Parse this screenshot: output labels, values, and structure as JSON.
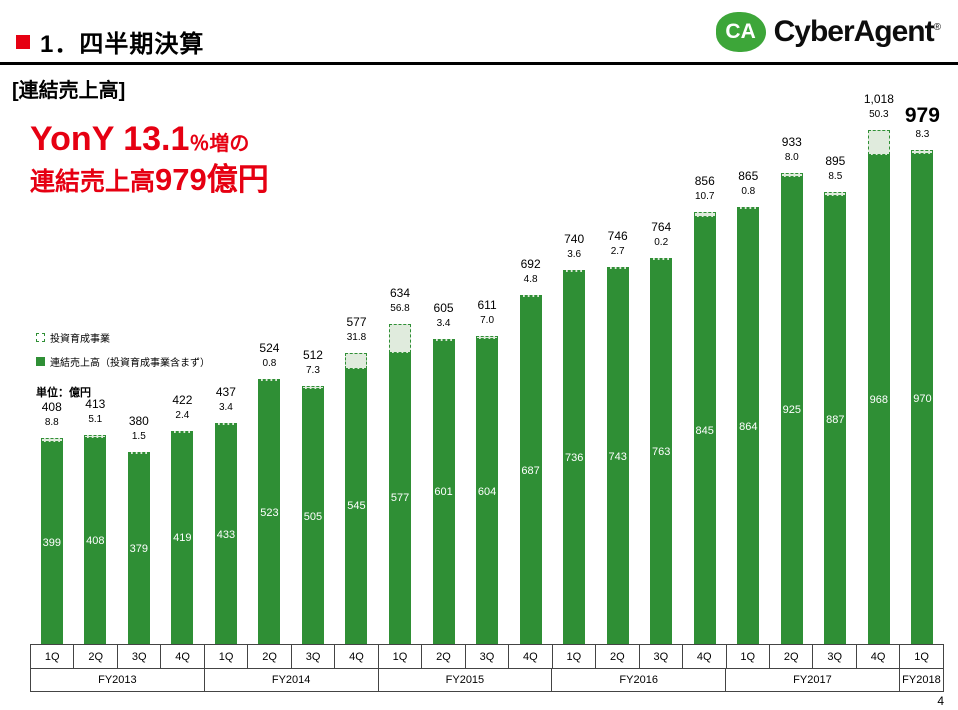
{
  "header": {
    "title": "1．四半期決算"
  },
  "logo": {
    "mark": "CA",
    "text": "CyberAgent",
    "reg": "®"
  },
  "section_label": "[連結売上高]",
  "highlight": {
    "yony": "YonY 13.1",
    "yony_suffix": "％増の",
    "line2_prefix": "連結売上高",
    "line2_value": "979億円"
  },
  "legend": {
    "investment": "投資育成事業",
    "consolidated": "連結売上高（投資育成事業含まず）"
  },
  "unit_label": "単位：億円",
  "page_number": "4",
  "chart_data": {
    "type": "bar",
    "stacked": true,
    "unit": "億円",
    "bar_color": "#2f8f35",
    "ylim": [
      0,
      1050
    ],
    "grid": false,
    "legend_position": "left-middle",
    "categories": [
      "1Q",
      "2Q",
      "3Q",
      "4Q",
      "1Q",
      "2Q",
      "3Q",
      "4Q",
      "1Q",
      "2Q",
      "3Q",
      "4Q",
      "1Q",
      "2Q",
      "3Q",
      "4Q",
      "1Q",
      "2Q",
      "3Q",
      "4Q",
      "1Q"
    ],
    "groups": [
      {
        "label": "FY2013",
        "span": 4
      },
      {
        "label": "FY2014",
        "span": 4
      },
      {
        "label": "FY2015",
        "span": 4
      },
      {
        "label": "FY2016",
        "span": 4
      },
      {
        "label": "FY2017",
        "span": 4
      },
      {
        "label": "FY2018",
        "span": 1
      }
    ],
    "series": [
      {
        "name": "連結売上高（投資育成事業含まず）",
        "values": [
          399,
          408,
          379,
          419,
          433,
          523,
          505,
          545,
          577,
          601,
          604,
          687,
          736,
          743,
          763,
          845,
          864,
          925,
          887,
          968,
          970
        ],
        "labels": [
          "399",
          "408",
          "379",
          "419",
          "433",
          "523",
          "505",
          "545",
          "577",
          "601",
          "604",
          "687",
          "736",
          "743",
          "763",
          "845",
          "864",
          "925",
          "887",
          "968",
          "970"
        ]
      },
      {
        "name": "投資育成事業",
        "values": [
          8.8,
          5.1,
          1.5,
          2.4,
          3.4,
          0.8,
          7.3,
          31.8,
          56.8,
          3.4,
          7.0,
          4.8,
          3.6,
          2.7,
          0.2,
          10.7,
          0.8,
          8.0,
          8.5,
          50.3,
          8.3
        ],
        "labels": [
          "8.8",
          "5.1",
          "1.5",
          "2.4",
          "3.4",
          "0.8",
          "7.3",
          "31.8",
          "56.8",
          "3.4",
          "7.0",
          "4.8",
          "3.6",
          "2.7",
          "0.2",
          "10.7",
          "0.8",
          "8.0",
          "8.5",
          "50.3",
          "8.3"
        ]
      }
    ],
    "totals": [
      408,
      413,
      380,
      422,
      437,
      524,
      512,
      577,
      634,
      605,
      611,
      692,
      740,
      746,
      764,
      856,
      865,
      933,
      895,
      1018,
      979
    ],
    "total_labels": [
      "408",
      "413",
      "380",
      "422",
      "437",
      "524",
      "512",
      "577",
      "634",
      "605",
      "611",
      "692",
      "740",
      "746",
      "764",
      "856",
      "865",
      "933",
      "895",
      "1,018",
      "979"
    ]
  }
}
